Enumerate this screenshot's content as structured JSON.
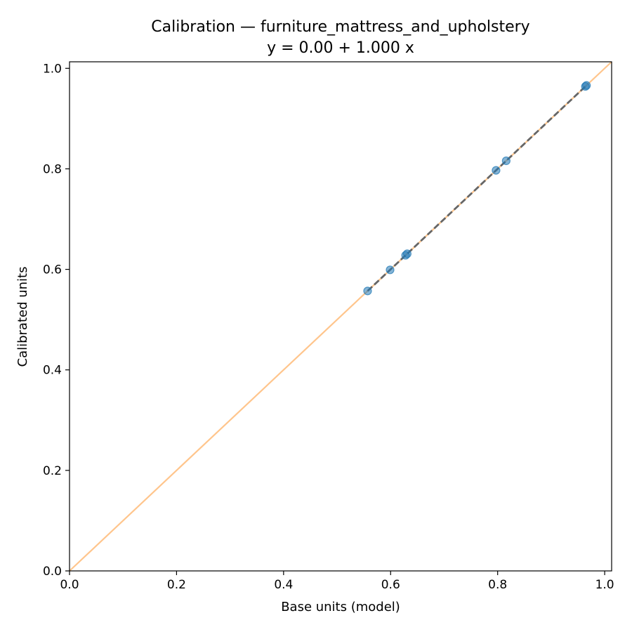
{
  "chart_data": {
    "type": "scatter",
    "title": "Calibration — furniture_mattress_and_upholstery",
    "subtitle": "y = 0.00 + 1.000 x",
    "xlabel": "Base units (model)",
    "ylabel": "Calibrated units",
    "xlim": [
      0.0,
      1.013
    ],
    "ylim": [
      0.0,
      1.013
    ],
    "x_ticks": [
      "0.0",
      "0.2",
      "0.4",
      "0.6",
      "0.8",
      "1.0"
    ],
    "y_ticks": [
      "0.0",
      "0.2",
      "0.4",
      "0.6",
      "0.8",
      "1.0"
    ],
    "grid": false,
    "points": {
      "x": [
        0.557,
        0.599,
        0.628,
        0.631,
        0.797,
        0.816,
        0.964,
        0.966
      ],
      "y": [
        0.557,
        0.599,
        0.628,
        0.631,
        0.797,
        0.816,
        0.964,
        0.966
      ],
      "color": "#1f77b4"
    },
    "identity_line": {
      "from": [
        0.0,
        0.0
      ],
      "to": [
        1.013,
        1.013
      ],
      "color": "#ffbb78"
    },
    "fit_line": {
      "intercept": 0.0,
      "slope": 1.0,
      "x_range": [
        0.557,
        0.966
      ],
      "color": "#666666",
      "style": "dashed"
    }
  }
}
